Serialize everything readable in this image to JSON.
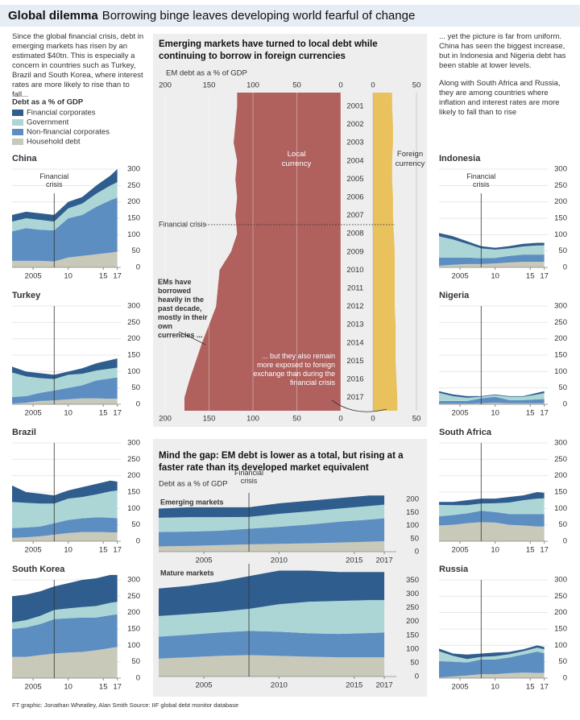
{
  "header": {
    "title": "Global dilemma",
    "subtitle": "Borrowing binge leaves developing world fearful of change"
  },
  "intro_left": "Since the global financial crisis, debt in emerging markets has risen by an estimated $40tn. This is especially a concern in countries such as Turkey, Brazil and South Korea, where interest rates are more likely to rise than to fall...",
  "intro_right": [
    "... yet the picture is far from uniform. China has seen the biggest increase, but in Indonesia and Nigeria debt has been stable at lower levels.",
    "Along with South Africa and Russia, they are among countries where inflation and interest rates are more likely to fall than to rise"
  ],
  "legend": {
    "title": "Debt as a % of GDP",
    "items": [
      {
        "name": "Financial corporates",
        "color": "#2f5d8e"
      },
      {
        "name": "Government",
        "color": "#acd6d6"
      },
      {
        "name": "Non-financial corporates",
        "color": "#5d8ec2"
      },
      {
        "name": "Household debt",
        "color": "#c9c9b9"
      }
    ]
  },
  "footer": "FT graphic: Jonathan Wheatley, Alan Smith  Source: IIF global debt monitor database",
  "chart_data": [
    {
      "type": "area",
      "title": "China",
      "x": [
        2002,
        2004,
        2006,
        2008,
        2010,
        2012,
        2014,
        2016,
        2017
      ],
      "xlim": [
        2002,
        2017.5
      ],
      "xticks": [
        2005,
        {
          "value": 2010,
          "label": "10"
        },
        {
          "value": 2015,
          "label": "15"
        },
        {
          "value": 2017,
          "label": "17"
        }
      ],
      "ylim": [
        0,
        300
      ],
      "yticks": [
        0,
        50,
        100,
        150,
        200,
        250,
        300
      ],
      "grid": true,
      "crisis_x": 2008,
      "annotation": "Financial crisis",
      "series": [
        {
          "values": [
            20,
            20,
            20,
            20,
            20,
            20,
            25,
            30,
            40
          ]
        },
        {
          "values": [
            30,
            30,
            30,
            27,
            30,
            35,
            40,
            45,
            47
          ]
        },
        {
          "values": [
            90,
            100,
            95,
            95,
            120,
            125,
            145,
            160,
            165
          ]
        },
        {
          "values": [
            20,
            20,
            20,
            18,
            30,
            35,
            40,
            45,
            48
          ]
        }
      ]
    },
    {
      "type": "area",
      "title": "Turkey",
      "x": [
        2002,
        2004,
        2006,
        2008,
        2010,
        2012,
        2014,
        2016,
        2017
      ],
      "xlim": [
        2002,
        2017.5
      ],
      "xticks": [
        2005,
        {
          "value": 2010,
          "label": "10"
        },
        {
          "value": 2015,
          "label": "15"
        },
        {
          "value": 2017,
          "label": "17"
        }
      ],
      "ylim": [
        0,
        300
      ],
      "yticks": [
        0,
        50,
        100,
        150,
        200,
        250,
        300
      ],
      "grid": true,
      "crisis_x": 2008,
      "series": [
        {
          "values": [
            18,
            15,
            15,
            13,
            10,
            17,
            22,
            26,
            28
          ]
        },
        {
          "values": [
            75,
            60,
            45,
            35,
            40,
            35,
            30,
            30,
            30
          ]
        },
        {
          "values": [
            20,
            20,
            25,
            30,
            35,
            40,
            55,
            62,
            65
          ]
        },
        {
          "values": [
            2,
            5,
            10,
            12,
            15,
            18,
            18,
            17,
            17
          ]
        }
      ]
    },
    {
      "type": "area",
      "title": "Brazil",
      "x": [
        2002,
        2004,
        2006,
        2008,
        2010,
        2012,
        2014,
        2016,
        2017
      ],
      "xlim": [
        2002,
        2017.5
      ],
      "xticks": [
        2005,
        {
          "value": 2010,
          "label": "10"
        },
        {
          "value": 2015,
          "label": "15"
        },
        {
          "value": 2017,
          "label": "17"
        }
      ],
      "ylim": [
        0,
        300
      ],
      "yticks": [
        0,
        50,
        100,
        150,
        200,
        250,
        300
      ],
      "grid": true,
      "crisis_x": 2008,
      "series": [
        {
          "values": [
            50,
            33,
            30,
            25,
            25,
            30,
            32,
            33,
            27
          ]
        },
        {
          "values": [
            80,
            75,
            70,
            60,
            65,
            65,
            70,
            80,
            85
          ]
        },
        {
          "values": [
            30,
            30,
            30,
            35,
            40,
            42,
            45,
            45,
            43
          ]
        },
        {
          "values": [
            10,
            12,
            15,
            20,
            25,
            28,
            28,
            27,
            27
          ]
        }
      ]
    },
    {
      "type": "area",
      "title": "South Korea",
      "x": [
        2002,
        2004,
        2006,
        2008,
        2010,
        2012,
        2014,
        2016,
        2017
      ],
      "xlim": [
        2002,
        2017.5
      ],
      "xticks": [
        2005,
        {
          "value": 2010,
          "label": "10"
        },
        {
          "value": 2015,
          "label": "15"
        },
        {
          "value": 2017,
          "label": "17"
        }
      ],
      "ylim": [
        0,
        300
      ],
      "yticks": [
        0,
        50,
        100,
        150,
        200,
        250,
        300
      ],
      "grid": true,
      "crisis_x": 2008,
      "series": [
        {
          "values": [
            80,
            78,
            75,
            72,
            77,
            83,
            85,
            85,
            82
          ]
        },
        {
          "values": [
            20,
            22,
            25,
            28,
            30,
            32,
            35,
            38,
            38
          ]
        },
        {
          "values": [
            85,
            90,
            95,
            105,
            105,
            105,
            100,
            100,
            100
          ]
        },
        {
          "values": [
            65,
            65,
            70,
            75,
            78,
            80,
            85,
            92,
            95
          ]
        }
      ]
    },
    {
      "type": "area",
      "title": "Indonesia",
      "x": [
        2002,
        2004,
        2006,
        2008,
        2010,
        2012,
        2014,
        2016,
        2017
      ],
      "xlim": [
        2002,
        2017.5
      ],
      "xticks": [
        2005,
        {
          "value": 2010,
          "label": "10"
        },
        {
          "value": 2015,
          "label": "15"
        },
        {
          "value": 2017,
          "label": "17"
        }
      ],
      "ylim": [
        0,
        300
      ],
      "yticks": [
        0,
        50,
        100,
        150,
        200,
        250,
        300
      ],
      "grid": true,
      "crisis_x": 2008,
      "annotation": "Financial crisis",
      "series": [
        {
          "values": [
            10,
            10,
            8,
            7,
            6,
            7,
            8,
            8,
            8
          ]
        },
        {
          "values": [
            65,
            55,
            42,
            30,
            25,
            23,
            25,
            28,
            28
          ]
        },
        {
          "values": [
            25,
            22,
            20,
            18,
            17,
            20,
            22,
            22,
            22
          ]
        },
        {
          "values": [
            5,
            8,
            10,
            10,
            12,
            15,
            17,
            17,
            17
          ]
        }
      ]
    },
    {
      "type": "area",
      "title": "Nigeria",
      "x": [
        2002,
        2004,
        2006,
        2008,
        2010,
        2012,
        2014,
        2016,
        2017
      ],
      "xlim": [
        2002,
        2017.5
      ],
      "xticks": [
        2005,
        {
          "value": 2010,
          "label": "10"
        },
        {
          "value": 2015,
          "label": "15"
        },
        {
          "value": 2017,
          "label": "17"
        }
      ],
      "ylim": [
        0,
        300
      ],
      "yticks": [
        0,
        50,
        100,
        150,
        200,
        250,
        300
      ],
      "grid": true,
      "crisis_x": 2008,
      "series": [
        {
          "values": [
            5,
            5,
            5,
            2,
            2,
            2,
            2,
            5,
            6
          ]
        },
        {
          "values": [
            25,
            15,
            10,
            5,
            5,
            10,
            10,
            15,
            18
          ]
        },
        {
          "values": [
            8,
            8,
            8,
            15,
            18,
            10,
            10,
            12,
            13
          ]
        },
        {
          "values": [
            2,
            2,
            2,
            3,
            5,
            3,
            3,
            3,
            3
          ]
        }
      ]
    },
    {
      "type": "area",
      "title": "South Africa",
      "x": [
        2002,
        2004,
        2006,
        2008,
        2010,
        2012,
        2014,
        2016,
        2017
      ],
      "xlim": [
        2002,
        2017.5
      ],
      "xticks": [
        2005,
        {
          "value": 2010,
          "label": "10"
        },
        {
          "value": 2015,
          "label": "15"
        },
        {
          "value": 2017,
          "label": "17"
        }
      ],
      "ylim": [
        0,
        300
      ],
      "yticks": [
        0,
        50,
        100,
        150,
        200,
        250,
        300
      ],
      "grid": true,
      "crisis_x": 2008,
      "series": [
        {
          "values": [
            9,
            10,
            15,
            15,
            14,
            17,
            15,
            20,
            17
          ]
        },
        {
          "values": [
            35,
            30,
            25,
            22,
            27,
            35,
            42,
            47,
            48
          ]
        },
        {
          "values": [
            28,
            30,
            30,
            35,
            32,
            33,
            35,
            38,
            38
          ]
        },
        {
          "values": [
            48,
            50,
            55,
            58,
            57,
            50,
            48,
            45,
            45
          ]
        }
      ]
    },
    {
      "type": "area",
      "title": "Russia",
      "x": [
        2002,
        2004,
        2006,
        2008,
        2010,
        2012,
        2014,
        2016,
        2017
      ],
      "xlim": [
        2002,
        2017.5
      ],
      "xticks": [
        2005,
        {
          "value": 2010,
          "label": "10"
        },
        {
          "value": 2015,
          "label": "15"
        },
        {
          "value": 2017,
          "label": "17"
        }
      ],
      "ylim": [
        0,
        300
      ],
      "yticks": [
        0,
        50,
        100,
        150,
        200,
        250,
        300
      ],
      "grid": true,
      "crisis_x": 2008,
      "series": [
        {
          "values": [
            8,
            7,
            14,
            10,
            11,
            7,
            6,
            7,
            7
          ]
        },
        {
          "values": [
            30,
            18,
            10,
            8,
            10,
            10,
            10,
            12,
            12
          ]
        },
        {
          "values": [
            50,
            45,
            40,
            45,
            45,
            48,
            55,
            65,
            60
          ]
        },
        {
          "values": [
            2,
            5,
            8,
            12,
            12,
            15,
            17,
            16,
            16
          ]
        }
      ]
    },
    {
      "type": "mirror",
      "title": "Emerging markets have turned to local debt while continuing to borrow in foreign currencies",
      "subtitle": "EM debt as a % of GDP",
      "categories": [
        2001,
        2002,
        2003,
        2004,
        2005,
        2006,
        2007,
        2008,
        2009,
        2010,
        2011,
        2012,
        2013,
        2014,
        2015,
        2016,
        2017
      ],
      "series": [
        {
          "name": "Local currency",
          "color": "#b0605d",
          "values": [
            118,
            120,
            122,
            118,
            120,
            118,
            120,
            118,
            125,
            138,
            140,
            142,
            150,
            158,
            165,
            172,
            178
          ]
        },
        {
          "name": "Foreign currency",
          "color": "#e9c25e",
          "values": [
            22,
            23,
            23,
            22,
            22,
            23,
            23,
            24,
            25,
            25,
            25,
            25,
            26,
            26,
            26,
            27,
            28
          ]
        }
      ],
      "xlim_left": [
        0,
        200
      ],
      "xticks_left": [
        200,
        150,
        100,
        50,
        0
      ],
      "xlim_right": [
        0,
        50
      ],
      "xticks_right": [
        0,
        50
      ],
      "crisis_x": 2008,
      "crisis_label": "Financial crisis",
      "annotations": [
        "EMs have borrowed heavily in the past decade, mostly in their own currencies ...",
        "... but they also remain more exposed to foreign exchange than during the financial crisis"
      ]
    },
    {
      "type": "area",
      "title": "Emerging markets",
      "panel_title": "Mind the gap: EM debt is lower as a total, but rising at a faster rate than its developed market equivalent",
      "subtitle": "Debt as a % of GDP",
      "x": [
        2002,
        2004,
        2006,
        2008,
        2010,
        2012,
        2014,
        2016,
        2017
      ],
      "xlim": [
        2002,
        2017.8
      ],
      "xticks": [
        2005,
        2010,
        2015,
        2017
      ],
      "ylim": [
        0,
        225
      ],
      "yticks": [
        0,
        50,
        100,
        150,
        200
      ],
      "grid": false,
      "crisis_x": 2008,
      "annotation": "Financial crisis",
      "series": [
        {
          "values": [
            35,
            38,
            38,
            37,
            40,
            41,
            40,
            40,
            35
          ]
        },
        {
          "values": [
            55,
            55,
            52,
            45,
            50,
            50,
            50,
            52,
            52
          ]
        },
        {
          "values": [
            55,
            55,
            55,
            60,
            65,
            72,
            80,
            85,
            88
          ]
        },
        {
          "values": [
            20,
            22,
            25,
            28,
            30,
            32,
            35,
            38,
            40
          ]
        }
      ]
    },
    {
      "type": "area",
      "title": "Mature markets",
      "x": [
        2002,
        2004,
        2006,
        2008,
        2010,
        2012,
        2014,
        2016,
        2017
      ],
      "xlim": [
        2002,
        2017.8
      ],
      "xticks": [
        2005,
        2010,
        2015,
        2017
      ],
      "ylim": [
        0,
        410
      ],
      "yticks": [
        0,
        50,
        100,
        150,
        200,
        250,
        300,
        350
      ],
      "grid": false,
      "crisis_x": 2008,
      "series": [
        {
          "values": [
            100,
            103,
            110,
            119,
            122,
            113,
            105,
            102,
            102
          ]
        },
        {
          "values": [
            75,
            75,
            75,
            80,
            100,
            115,
            120,
            120,
            118
          ]
        },
        {
          "values": [
            80,
            82,
            85,
            88,
            88,
            85,
            85,
            88,
            90
          ]
        },
        {
          "values": [
            65,
            70,
            75,
            78,
            75,
            72,
            70,
            70,
            70
          ]
        }
      ]
    }
  ]
}
